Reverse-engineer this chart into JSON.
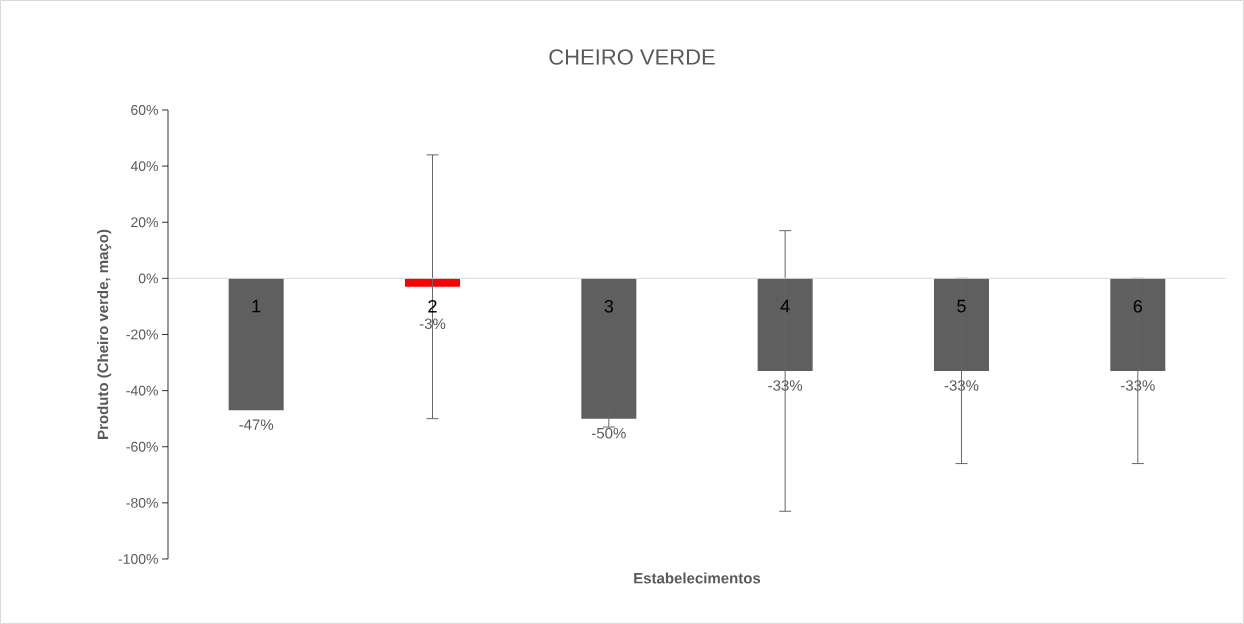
{
  "chart_data": {
    "type": "bar",
    "title": "CHEIRO VERDE",
    "xlabel": "Estabelecimentos",
    "ylabel": "Produto (Cheiro verde, maço)",
    "categories": [
      "1",
      "2",
      "3",
      "4",
      "5",
      "6"
    ],
    "values": [
      -47,
      -3,
      -50,
      -33,
      -33,
      -33
    ],
    "colors": [
      "#5f5f5f",
      "#ff0000",
      "#5f5f5f",
      "#5f5f5f",
      "#5f5f5f",
      "#5f5f5f"
    ],
    "errors": [
      null,
      47,
      3,
      50,
      33,
      33
    ],
    "value_labels": [
      "-47%",
      "-3%",
      "-50%",
      "-33%",
      "-33%",
      "-33%"
    ],
    "ylim": [
      -100,
      60
    ],
    "yticks": [
      {
        "value": -100,
        "label": "-100%"
      },
      {
        "value": -80,
        "label": "-80%"
      },
      {
        "value": -60,
        "label": "-60%"
      },
      {
        "value": -40,
        "label": "-40%"
      },
      {
        "value": -20,
        "label": "-20%"
      },
      {
        "value": 0,
        "label": "0%"
      },
      {
        "value": 20,
        "label": "20%"
      },
      {
        "value": 40,
        "label": "40%"
      },
      {
        "value": 60,
        "label": "60%"
      }
    ],
    "grid": false
  }
}
